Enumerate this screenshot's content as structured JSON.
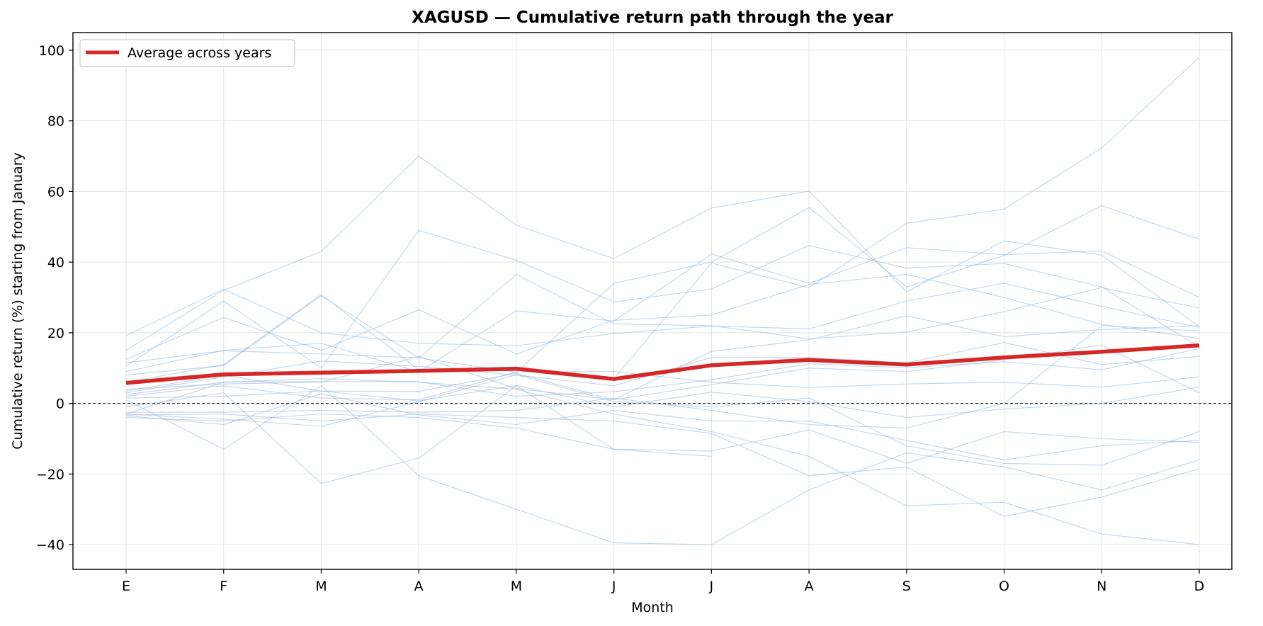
{
  "chart_data": {
    "type": "line",
    "title": "XAGUSD — Cumulative return path through the year",
    "xlabel": "Month",
    "ylabel": "Cumulative return (%) starting from January",
    "categories": [
      "E",
      "F",
      "M",
      "A",
      "M",
      "J",
      "J",
      "A",
      "S",
      "O",
      "N",
      "D"
    ],
    "ylim": [
      -47,
      105
    ],
    "yticks": [
      -40,
      -20,
      0,
      20,
      40,
      60,
      80,
      100
    ],
    "ytick_labels": [
      "−40",
      "−20",
      "0",
      "20",
      "40",
      "60",
      "80",
      "100"
    ],
    "grid": true,
    "zero_line": {
      "y": 0,
      "style": "dashed",
      "color": "#000000"
    },
    "legend": {
      "placement": "top-left",
      "entries": [
        "Average across years"
      ]
    },
    "colors": {
      "average": "#d62728",
      "years": "#8fb3d6"
    },
    "average": {
      "name": "Average across years",
      "values": [
        5.8,
        8.2,
        8.7,
        9.2,
        9.8,
        6.9,
        10.8,
        12.3,
        11.0,
        13.0,
        14.6,
        16.4
      ]
    },
    "year_series": [
      {
        "values": [
          19.2,
          32.3,
          20.0,
          17.0,
          16.3,
          19.8,
          21.9,
          21.1,
          29.0,
          34.0,
          27.5,
          21.5
        ]
      },
      {
        "values": [
          15.0,
          32.0,
          43.0,
          70.0,
          50.5,
          41.0,
          55.3,
          60.1,
          31.6,
          46.0,
          42.0,
          21.7
        ]
      },
      {
        "values": [
          10.5,
          29.0,
          10.0,
          49.0,
          40.5,
          28.7,
          32.4,
          44.7,
          38.3,
          39.6,
          33.0,
          16.0
        ]
      },
      {
        "values": [
          12.5,
          24.3,
          15.0,
          26.5,
          14.0,
          23.5,
          25.0,
          33.7,
          36.5,
          30.0,
          22.4,
          18.4
        ]
      },
      {
        "values": [
          11.5,
          14.9,
          14.0,
          12.9,
          36.5,
          22.5,
          22.0,
          18.3,
          20.2,
          26.0,
          32.8,
          27.0
        ]
      },
      {
        "values": [
          9.0,
          15.0,
          17.0,
          8.9,
          26.2,
          23.3,
          42.3,
          34.0,
          44.1,
          42.1,
          43.2,
          30.0
        ]
      },
      {
        "values": [
          8.0,
          10.7,
          30.5,
          12.9,
          8.8,
          34.0,
          40.0,
          55.4,
          33.0,
          41.9,
          56.0,
          46.5
        ]
      },
      {
        "values": [
          6.0,
          11.0,
          30.8,
          9.5,
          10.3,
          7.0,
          39.7,
          32.8,
          51.0,
          55.0,
          72.3,
          98.0
        ]
      },
      {
        "values": [
          4.0,
          5.5,
          6.0,
          13.3,
          4.2,
          1.0,
          14.7,
          18.0,
          24.8,
          18.9,
          20.9,
          22.0
        ]
      },
      {
        "values": [
          3.0,
          7.5,
          12.0,
          10.5,
          8.0,
          5.0,
          13.0,
          13.0,
          11.5,
          17.2,
          11.0,
          13.3
        ]
      },
      {
        "values": [
          2.5,
          6.0,
          6.2,
          6.1,
          2.0,
          3.3,
          6.7,
          11.2,
          10.1,
          11.8,
          9.5,
          15.5
        ]
      },
      {
        "values": [
          3.5,
          8.0,
          3.5,
          3.4,
          8.5,
          1.0,
          5.3,
          10.0,
          9.0,
          12.3,
          16.5,
          3.0
        ]
      },
      {
        "values": [
          2.0,
          5.0,
          1.5,
          1.0,
          8.9,
          9.0,
          6.0,
          4.5,
          5.5,
          6.0,
          4.6,
          7.5
        ]
      },
      {
        "values": [
          1.5,
          2.0,
          3.5,
          0.7,
          5.1,
          -1.0,
          3.2,
          0.5,
          -4.0,
          -1.6,
          0.0,
          4.6
        ]
      },
      {
        "values": [
          -2.5,
          -2.5,
          -2.0,
          -2.5,
          -2.0,
          1.5,
          -2.0,
          -6.0,
          -7.0,
          0.0,
          22.0,
          20.5
        ]
      },
      {
        "values": [
          -3.5,
          -6.0,
          2.7,
          -3.3,
          -6.0,
          -2.0,
          -5.0,
          -5.0,
          -10.5,
          -16.0,
          -12.0,
          -10.5
        ]
      },
      {
        "values": [
          -3.0,
          -4.5,
          -6.5,
          0.5,
          8.1,
          0.5,
          -1.0,
          1.5,
          -12.0,
          -17.0,
          -17.5,
          -8.0
        ]
      },
      {
        "values": [
          -4.0,
          -5.0,
          -3.0,
          -4.0,
          -7.0,
          -13.0,
          -13.5,
          -7.5,
          -17.0,
          -8.0,
          -10.0,
          -11.0
        ]
      },
      {
        "values": [
          -1.0,
          3.0,
          -22.7,
          -15.5,
          5.0,
          -13.0,
          -15.0,
          null,
          null,
          null,
          null,
          null
        ]
      },
      {
        "values": [
          1.0,
          -13.0,
          5.0,
          -20.5,
          -30.0,
          -39.5,
          -40.0,
          -24.5,
          -14.0,
          -18.0,
          -24.5,
          -16.0
        ]
      },
      {
        "values": [
          -3.0,
          6.0,
          7.0,
          6.0,
          4.0,
          -3.0,
          -8.0,
          -15.0,
          -29.0,
          -28.0,
          -37.0,
          -40.0
        ]
      },
      {
        "values": [
          -3.3,
          -3.0,
          -5.0,
          -3.0,
          -4.0,
          -5.0,
          -8.5,
          -20.5,
          -18.0,
          -32.0,
          -26.5,
          -18.5
        ]
      }
    ]
  }
}
